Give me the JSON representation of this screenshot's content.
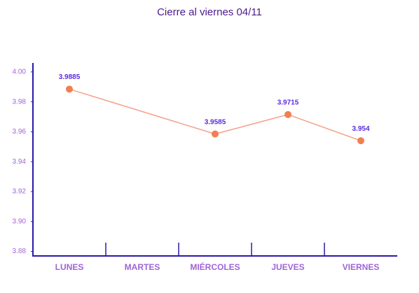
{
  "chart_data": {
    "type": "line",
    "title": "Cierre al viernes 04/11",
    "categories": [
      "LUNES",
      "MARTES",
      "MIÉRCOLES",
      "JUEVES",
      "VIERNES"
    ],
    "series": [
      {
        "name": "Cierre",
        "color": "#f07f52",
        "line_color": "#f6a08a",
        "values": [
          3.9885,
          null,
          3.9585,
          3.9715,
          3.954
        ]
      }
    ],
    "ylim": [
      3.877,
      4.006
    ],
    "yticks": [
      {
        "value": 3.88,
        "label": "3.88"
      },
      {
        "value": 3.9,
        "label": "3.90"
      },
      {
        "value": 3.92,
        "label": "3.92"
      },
      {
        "value": 3.94,
        "label": "3.94"
      },
      {
        "value": 3.96,
        "label": "3.96"
      },
      {
        "value": 3.98,
        "label": "3.98"
      },
      {
        "value": 4.0,
        "label": "4.00"
      }
    ],
    "grid": false
  }
}
